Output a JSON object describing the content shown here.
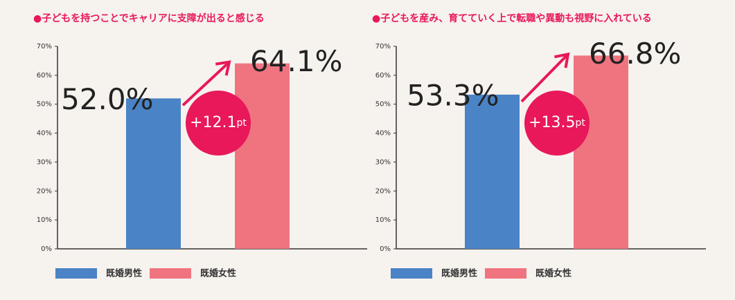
{
  "chart_data": [
    {
      "type": "bar",
      "title": "●子どもを持つことでキャリアに支障が出ると感じる",
      "series": [
        {
          "name": "既婚男性",
          "color": "#4a83c6",
          "values": [
            52.0
          ],
          "value_labels": [
            "52.0%"
          ]
        },
        {
          "name": "既婚女性",
          "color": "#f07480",
          "values": [
            64.1
          ],
          "value_labels": [
            "64.1%"
          ]
        }
      ],
      "annotation": {
        "value": "+12.1",
        "unit": "pt"
      },
      "ylim": [
        0,
        70
      ],
      "yticks": [
        {
          "value": 0,
          "label": "0%"
        },
        {
          "value": 10,
          "label": "10%"
        },
        {
          "value": 20,
          "label": "20%"
        },
        {
          "value": 30,
          "label": "30%"
        },
        {
          "value": 40,
          "label": "40%"
        },
        {
          "value": 50,
          "label": "50%"
        },
        {
          "value": 60,
          "label": "60%"
        },
        {
          "value": 70,
          "label": "70%"
        }
      ]
    },
    {
      "type": "bar",
      "title": "●子どもを産み、育てていく上で転職や異動も視野に入れている",
      "series": [
        {
          "name": "既婚男性",
          "color": "#4a83c6",
          "values": [
            53.3
          ],
          "value_labels": [
            "53.3%"
          ]
        },
        {
          "name": "既婚女性",
          "color": "#f07480",
          "values": [
            66.8
          ],
          "value_labels": [
            "66.8%"
          ]
        }
      ],
      "annotation": {
        "value": "+13.5",
        "unit": "pt"
      },
      "ylim": [
        0,
        70
      ],
      "yticks": [
        {
          "value": 0,
          "label": "0%"
        },
        {
          "value": 10,
          "label": "10%"
        },
        {
          "value": 20,
          "label": "20%"
        },
        {
          "value": 30,
          "label": "30%"
        },
        {
          "value": 40,
          "label": "40%"
        },
        {
          "value": 50,
          "label": "50%"
        },
        {
          "value": 60,
          "label": "60%"
        },
        {
          "value": 70,
          "label": "70%"
        }
      ]
    }
  ]
}
